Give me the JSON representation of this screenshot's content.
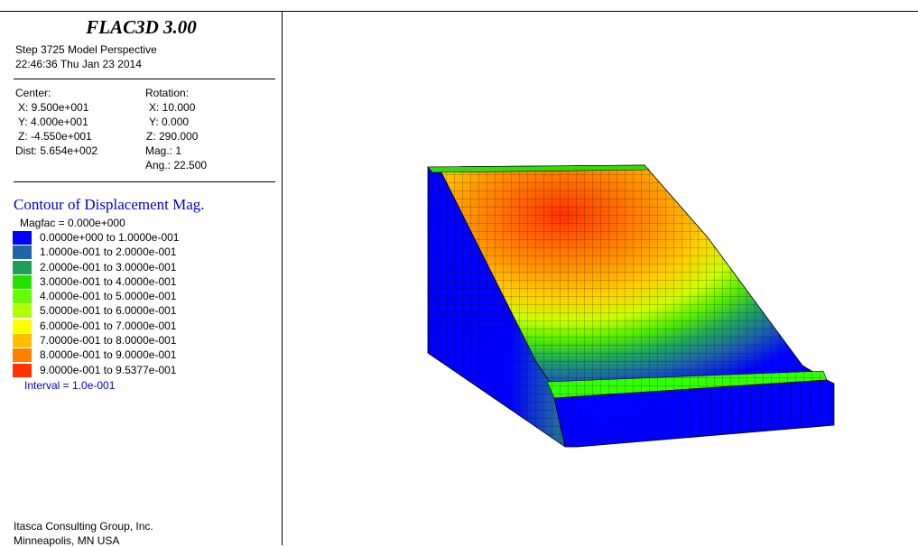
{
  "header": {
    "title": "FLAC3D 3.00",
    "step_line": "Step 3725  Model Perspective",
    "datetime": "22:46:36 Thu Jan 23 2014"
  },
  "view": {
    "center_label": "Center:",
    "center_x": "X: 9.500e+001",
    "center_y": "Y: 4.000e+001",
    "center_z": "Z: -4.550e+001",
    "dist": "Dist: 5.654e+002",
    "rotation_label": "Rotation:",
    "rot_x": "X:  10.000",
    "rot_y": "Y:   0.000",
    "rot_z": "Z: 290.000",
    "mag": "Mag.:       1",
    "ang": "Ang.:  22.500"
  },
  "contour": {
    "title": "Contour of Displacement Mag.",
    "magfac": "Magfac =  0.000e+000",
    "legend": [
      {
        "label": "0.0000e+000 to  1.0000e-001",
        "color": "#0000ff"
      },
      {
        "label": "1.0000e-001 to  2.0000e-001",
        "color": "#1f66a8"
      },
      {
        "label": "2.0000e-001 to  3.0000e-001",
        "color": "#1f9e5a"
      },
      {
        "label": "3.0000e-001 to  4.0000e-001",
        "color": "#22e000"
      },
      {
        "label": "4.0000e-001 to  5.0000e-001",
        "color": "#66ff00"
      },
      {
        "label": "5.0000e-001 to  6.0000e-001",
        "color": "#b2ff00"
      },
      {
        "label": "6.0000e-001 to  7.0000e-001",
        "color": "#ffff00"
      },
      {
        "label": "7.0000e-001 to  8.0000e-001",
        "color": "#ffbf00"
      },
      {
        "label": "8.0000e-001 to  9.0000e-001",
        "color": "#ff8000"
      },
      {
        "label": "9.0000e-001 to  9.5377e-001",
        "color": "#ff3300"
      }
    ],
    "interval": "Interval =  1.0e-001"
  },
  "footer": {
    "company": "Itasca Consulting Group, Inc.",
    "location": "Minneapolis, MN  USA"
  },
  "colors": {
    "grid_line": "#000000",
    "bench": "#33ff00"
  }
}
